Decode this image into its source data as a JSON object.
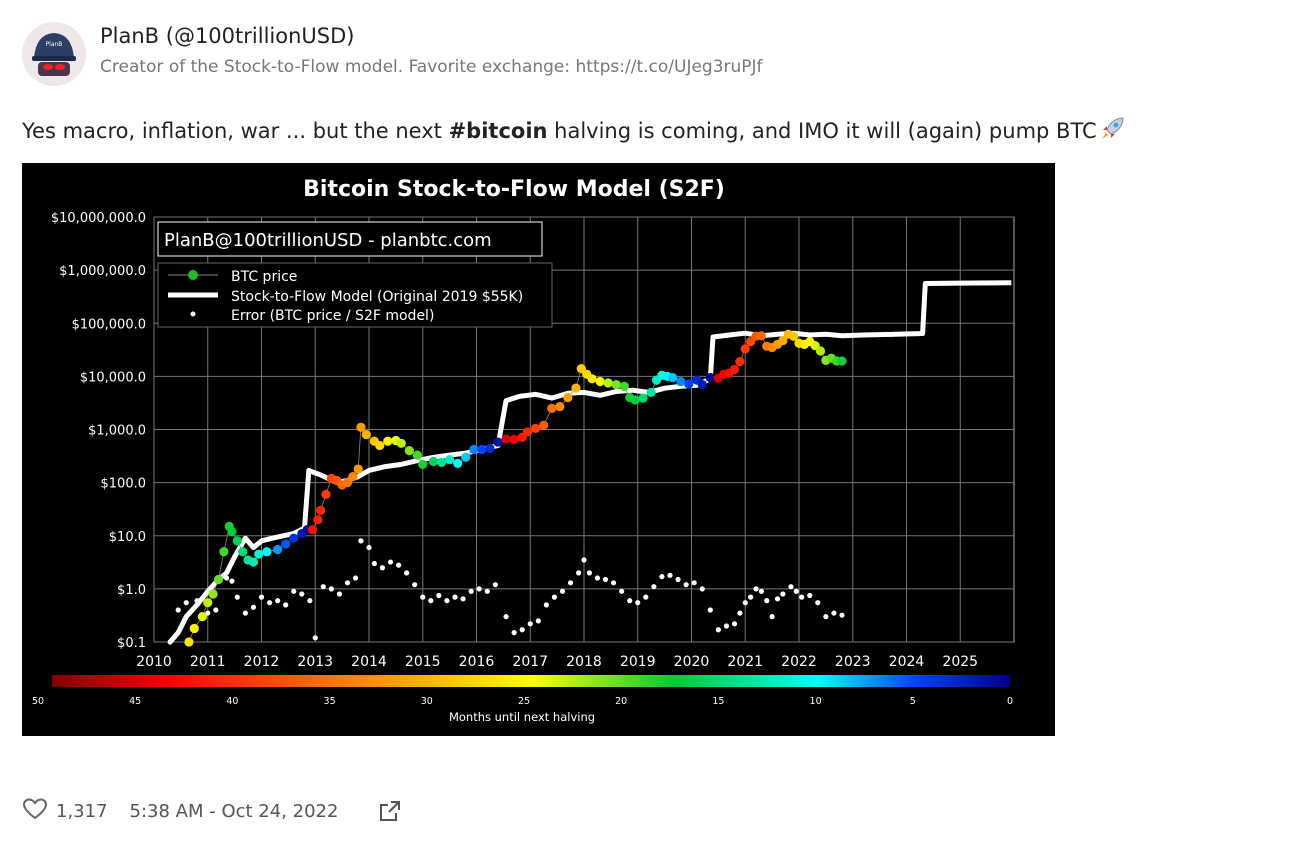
{
  "author": {
    "name": "PlanB (@100trillionUSD)",
    "bio": "Creator of the Stock-to-Flow model. Favorite exchange: https://t.co/UJeg3ruPJf",
    "avatar_text": "PlanB"
  },
  "tweet": {
    "text_before": "Yes macro, inflation, war ... but the next ",
    "hashtag": "#bitcoin",
    "text_after": " halving is coming, and IMO it will (again) pump BTC",
    "emoji": "rocket-icon"
  },
  "footer": {
    "likes": "1,317",
    "timestamp": "5:38 AM - Oct 24, 2022"
  },
  "colors": {
    "chart_bg": "#000000",
    "model_line": "#ffffff",
    "error_dots": "#ffffff",
    "legend_price_dot": "#22bb22"
  },
  "chart_data": {
    "type": "scatter",
    "title": "Bitcoin Stock-to-Flow Model (S2F)",
    "watermark": "PlanB@100trillionUSD  -  planbtc.com",
    "y_scale": "log",
    "ylim": [
      0.1,
      10000000
    ],
    "xlim": [
      2010,
      2026
    ],
    "y_ticks": [
      "$10,000,000.0",
      "$1,000,000.0",
      "$100,000.0",
      "$10,000.0",
      "$1,000.0",
      "$100.0",
      "$10.0",
      "$1.0",
      "$0.1"
    ],
    "y_tick_values": [
      10000000,
      1000000,
      100000,
      10000,
      1000,
      100,
      10,
      1,
      0.1
    ],
    "x_ticks": [
      "2010",
      "2011",
      "2012",
      "2013",
      "2014",
      "2015",
      "2016",
      "2017",
      "2018",
      "2019",
      "2020",
      "2021",
      "2022",
      "2023",
      "2024",
      "2025"
    ],
    "grid": true,
    "legend_position": "top-left",
    "legend": [
      "BTC price",
      "Stock-to-Flow Model (Original 2019 $55K)",
      "Error (BTC price / S2F model)"
    ],
    "colorbar": {
      "label": "Months until next halving",
      "ticks": [
        "50",
        "45",
        "40",
        "35",
        "30",
        "25",
        "20",
        "15",
        "10",
        "5",
        "0"
      ]
    },
    "series": [
      {
        "name": "Stock-to-Flow Model (Original 2019 $55K)",
        "points": [
          [
            2010.3,
            0.1
          ],
          [
            2010.45,
            0.15
          ],
          [
            2010.6,
            0.3
          ],
          [
            2010.8,
            0.5
          ],
          [
            2011.0,
            0.9
          ],
          [
            2011.2,
            1.5
          ],
          [
            2011.35,
            2
          ],
          [
            2011.5,
            4
          ],
          [
            2011.6,
            6
          ],
          [
            2011.7,
            9
          ],
          [
            2011.85,
            6
          ],
          [
            2012.0,
            8
          ],
          [
            2012.2,
            9
          ],
          [
            2012.4,
            10
          ],
          [
            2012.6,
            11
          ],
          [
            2012.8,
            14
          ],
          [
            2012.88,
            170
          ],
          [
            2013.1,
            140
          ],
          [
            2013.4,
            100
          ],
          [
            2013.6,
            110
          ],
          [
            2013.8,
            130
          ],
          [
            2014.0,
            170
          ],
          [
            2014.3,
            200
          ],
          [
            2014.6,
            220
          ],
          [
            2014.9,
            260
          ],
          [
            2015.2,
            300
          ],
          [
            2015.5,
            330
          ],
          [
            2015.8,
            360
          ],
          [
            2016.1,
            420
          ],
          [
            2016.4,
            500
          ],
          [
            2016.55,
            3500
          ],
          [
            2016.8,
            4200
          ],
          [
            2017.1,
            4600
          ],
          [
            2017.4,
            3900
          ],
          [
            2017.7,
            4800
          ],
          [
            2018.0,
            5000
          ],
          [
            2018.3,
            4400
          ],
          [
            2018.6,
            5200
          ],
          [
            2018.9,
            5500
          ],
          [
            2019.2,
            5000
          ],
          [
            2019.5,
            6000
          ],
          [
            2019.8,
            6500
          ],
          [
            2020.1,
            6800
          ],
          [
            2020.35,
            9000
          ],
          [
            2020.4,
            55000
          ],
          [
            2020.7,
            60000
          ],
          [
            2021.0,
            65000
          ],
          [
            2021.3,
            58000
          ],
          [
            2021.6,
            62000
          ],
          [
            2021.9,
            65000
          ],
          [
            2022.2,
            60000
          ],
          [
            2022.5,
            62000
          ],
          [
            2022.8,
            58000
          ],
          [
            2023.2,
            60000
          ],
          [
            2023.8,
            62000
          ],
          [
            2024.3,
            64000
          ],
          [
            2024.35,
            560000
          ],
          [
            2025.0,
            570000
          ],
          [
            2025.95,
            580000
          ]
        ]
      },
      {
        "name": "BTC price",
        "points": [
          [
            2010.65,
            0.1
          ],
          [
            2010.75,
            0.18
          ],
          [
            2010.9,
            0.3
          ],
          [
            2011.0,
            0.55
          ],
          [
            2011.1,
            0.8
          ],
          [
            2011.2,
            1.5
          ],
          [
            2011.3,
            5
          ],
          [
            2011.4,
            15
          ],
          [
            2011.45,
            12
          ],
          [
            2011.55,
            8
          ],
          [
            2011.65,
            5
          ],
          [
            2011.75,
            3.5
          ],
          [
            2011.85,
            3.2
          ],
          [
            2011.95,
            4.5
          ],
          [
            2012.1,
            5
          ],
          [
            2012.3,
            5.5
          ],
          [
            2012.45,
            7
          ],
          [
            2012.6,
            9
          ],
          [
            2012.75,
            11
          ],
          [
            2012.85,
            13
          ],
          [
            2012.95,
            13
          ],
          [
            2013.05,
            20
          ],
          [
            2013.1,
            30
          ],
          [
            2013.2,
            60
          ],
          [
            2013.3,
            120
          ],
          [
            2013.4,
            110
          ],
          [
            2013.5,
            90
          ],
          [
            2013.6,
            100
          ],
          [
            2013.7,
            130
          ],
          [
            2013.8,
            180
          ],
          [
            2013.85,
            1100
          ],
          [
            2013.95,
            800
          ],
          [
            2014.1,
            600
          ],
          [
            2014.2,
            500
          ],
          [
            2014.35,
            600
          ],
          [
            2014.5,
            620
          ],
          [
            2014.6,
            550
          ],
          [
            2014.75,
            400
          ],
          [
            2014.9,
            330
          ],
          [
            2015.0,
            220
          ],
          [
            2015.2,
            250
          ],
          [
            2015.35,
            240
          ],
          [
            2015.5,
            270
          ],
          [
            2015.65,
            230
          ],
          [
            2015.8,
            300
          ],
          [
            2015.95,
            420
          ],
          [
            2016.1,
            420
          ],
          [
            2016.25,
            440
          ],
          [
            2016.4,
            580
          ],
          [
            2016.55,
            660
          ],
          [
            2016.7,
            650
          ],
          [
            2016.85,
            710
          ],
          [
            2016.95,
            900
          ],
          [
            2017.1,
            1050
          ],
          [
            2017.25,
            1200
          ],
          [
            2017.4,
            2500
          ],
          [
            2017.55,
            2700
          ],
          [
            2017.7,
            4000
          ],
          [
            2017.85,
            6000
          ],
          [
            2017.95,
            14000
          ],
          [
            2018.05,
            11000
          ],
          [
            2018.15,
            9000
          ],
          [
            2018.3,
            8000
          ],
          [
            2018.45,
            7500
          ],
          [
            2018.6,
            7000
          ],
          [
            2018.75,
            6500
          ],
          [
            2018.85,
            4000
          ],
          [
            2018.95,
            3600
          ],
          [
            2019.1,
            3900
          ],
          [
            2019.25,
            5000
          ],
          [
            2019.35,
            8500
          ],
          [
            2019.45,
            10500
          ],
          [
            2019.55,
            10000
          ],
          [
            2019.65,
            9500
          ],
          [
            2019.8,
            8000
          ],
          [
            2019.95,
            7200
          ],
          [
            2020.1,
            8500
          ],
          [
            2020.2,
            7000
          ],
          [
            2020.35,
            9500
          ],
          [
            2020.5,
            9200
          ],
          [
            2020.6,
            11000
          ],
          [
            2020.7,
            11500
          ],
          [
            2020.8,
            13500
          ],
          [
            2020.9,
            19000
          ],
          [
            2021.0,
            33000
          ],
          [
            2021.1,
            45000
          ],
          [
            2021.2,
            57000
          ],
          [
            2021.3,
            58000
          ],
          [
            2021.4,
            37000
          ],
          [
            2021.5,
            35000
          ],
          [
            2021.6,
            40000
          ],
          [
            2021.7,
            47000
          ],
          [
            2021.8,
            62000
          ],
          [
            2021.9,
            57000
          ],
          [
            2022.0,
            42000
          ],
          [
            2022.1,
            40000
          ],
          [
            2022.2,
            45000
          ],
          [
            2022.3,
            38000
          ],
          [
            2022.4,
            30000
          ],
          [
            2022.5,
            20000
          ],
          [
            2022.6,
            22000
          ],
          [
            2022.7,
            19500
          ],
          [
            2022.8,
            19500
          ]
        ]
      },
      {
        "name": "Error (BTC price / S2F model)",
        "points": [
          [
            2010.3,
            0.1
          ],
          [
            2010.45,
            0.4
          ],
          [
            2010.6,
            0.55
          ],
          [
            2010.8,
            0.6
          ],
          [
            2011.0,
            0.35
          ],
          [
            2011.15,
            0.4
          ],
          [
            2011.35,
            1.6
          ],
          [
            2011.45,
            1.4
          ],
          [
            2011.55,
            0.7
          ],
          [
            2011.7,
            0.35
          ],
          [
            2011.85,
            0.45
          ],
          [
            2012.0,
            0.7
          ],
          [
            2012.15,
            0.55
          ],
          [
            2012.3,
            0.6
          ],
          [
            2012.45,
            0.5
          ],
          [
            2012.6,
            0.9
          ],
          [
            2012.75,
            0.8
          ],
          [
            2012.9,
            0.6
          ],
          [
            2013.0,
            0.12
          ],
          [
            2013.15,
            1.1
          ],
          [
            2013.3,
            1.0
          ],
          [
            2013.45,
            0.8
          ],
          [
            2013.6,
            1.3
          ],
          [
            2013.75,
            1.6
          ],
          [
            2013.85,
            8
          ],
          [
            2014.0,
            6
          ],
          [
            2014.1,
            3
          ],
          [
            2014.25,
            2.5
          ],
          [
            2014.4,
            3.2
          ],
          [
            2014.55,
            2.8
          ],
          [
            2014.7,
            2.0
          ],
          [
            2014.85,
            1.2
          ],
          [
            2015.0,
            0.7
          ],
          [
            2015.15,
            0.6
          ],
          [
            2015.3,
            0.75
          ],
          [
            2015.45,
            0.6
          ],
          [
            2015.6,
            0.7
          ],
          [
            2015.75,
            0.65
          ],
          [
            2015.9,
            0.9
          ],
          [
            2016.05,
            1.0
          ],
          [
            2016.2,
            0.9
          ],
          [
            2016.35,
            1.2
          ],
          [
            2016.55,
            0.3
          ],
          [
            2016.7,
            0.15
          ],
          [
            2016.85,
            0.17
          ],
          [
            2017.0,
            0.22
          ],
          [
            2017.15,
            0.25
          ],
          [
            2017.3,
            0.5
          ],
          [
            2017.45,
            0.7
          ],
          [
            2017.6,
            0.9
          ],
          [
            2017.75,
            1.3
          ],
          [
            2017.9,
            2
          ],
          [
            2018.0,
            3.5
          ],
          [
            2018.1,
            2.0
          ],
          [
            2018.25,
            1.6
          ],
          [
            2018.4,
            1.5
          ],
          [
            2018.55,
            1.3
          ],
          [
            2018.7,
            0.9
          ],
          [
            2018.85,
            0.6
          ],
          [
            2019.0,
            0.55
          ],
          [
            2019.15,
            0.7
          ],
          [
            2019.3,
            1.1
          ],
          [
            2019.45,
            1.7
          ],
          [
            2019.6,
            1.8
          ],
          [
            2019.75,
            1.5
          ],
          [
            2019.9,
            1.2
          ],
          [
            2020.05,
            1.3
          ],
          [
            2020.2,
            1.0
          ],
          [
            2020.35,
            0.4
          ],
          [
            2020.5,
            0.17
          ],
          [
            2020.65,
            0.2
          ],
          [
            2020.8,
            0.22
          ],
          [
            2020.9,
            0.35
          ],
          [
            2021.0,
            0.55
          ],
          [
            2021.1,
            0.7
          ],
          [
            2021.2,
            1.0
          ],
          [
            2021.3,
            0.9
          ],
          [
            2021.4,
            0.6
          ],
          [
            2021.5,
            0.3
          ],
          [
            2021.6,
            0.65
          ],
          [
            2021.7,
            0.8
          ],
          [
            2021.85,
            1.1
          ],
          [
            2021.95,
            0.9
          ],
          [
            2022.05,
            0.7
          ],
          [
            2022.2,
            0.75
          ],
          [
            2022.35,
            0.55
          ],
          [
            2022.5,
            0.3
          ],
          [
            2022.65,
            0.35
          ],
          [
            2022.8,
            0.32
          ]
        ]
      }
    ]
  }
}
